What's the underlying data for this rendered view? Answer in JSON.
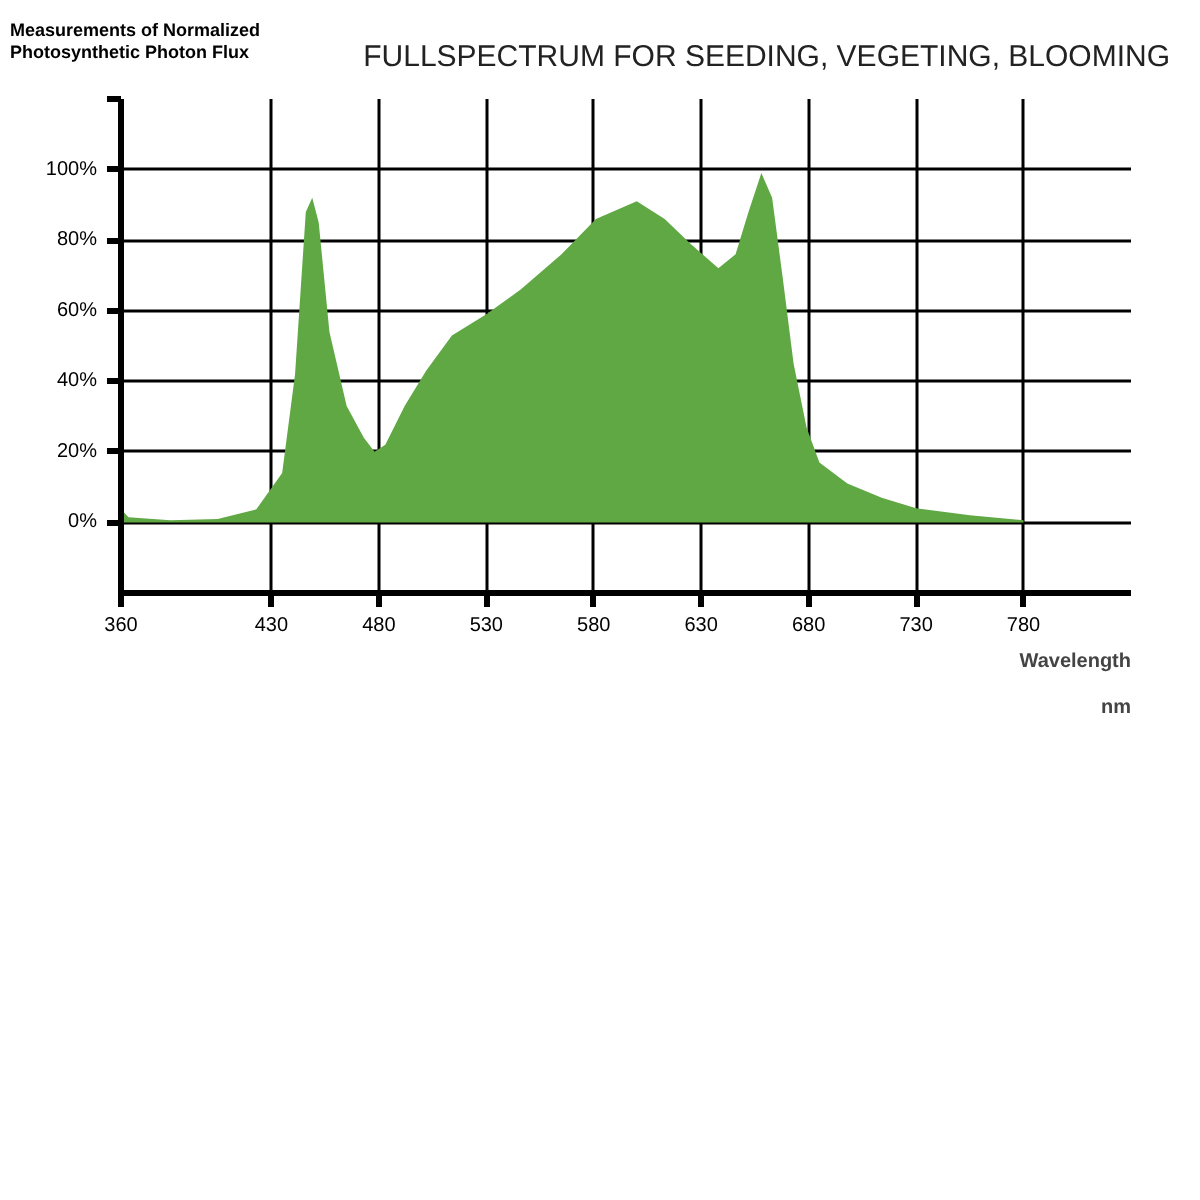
{
  "chart_data": {
    "type": "area",
    "title": "FULLSPECTRUM FOR SEEDING, VEGETING, BLOOMING",
    "ylabel": "Measurements of Normalized Photosynthetic Photon Flux",
    "xlabel": "Wavelength nm",
    "x": [
      360,
      363.5,
      383,
      405,
      423,
      435,
      441,
      446,
      449,
      452,
      457,
      465,
      473,
      478,
      483,
      492,
      502,
      514,
      530,
      546,
      565,
      581,
      600,
      613,
      625,
      638,
      646,
      652,
      658,
      663,
      668,
      673,
      679,
      685,
      698,
      714,
      730,
      755,
      780
    ],
    "series": [
      {
        "color": "#5fa843",
        "values": [
          3.7,
          1.5,
          0.6,
          1,
          3.7,
          14,
          42,
          88,
          92,
          85,
          54,
          33,
          24,
          20,
          22,
          33,
          43,
          53,
          59,
          66,
          76,
          86,
          91,
          86,
          79,
          72,
          76,
          88,
          99,
          92,
          69,
          45,
          27,
          17,
          11,
          7,
          4,
          2,
          0.6
        ]
      }
    ],
    "xlim": [
      360,
      830
    ],
    "xticks": [
      360,
      430,
      480,
      530,
      580,
      630,
      680,
      730,
      780
    ],
    "ylim": [
      -20,
      120
    ],
    "yticks": [
      {
        "value": 0,
        "label": "0%"
      },
      {
        "value": 20,
        "label": "20%"
      },
      {
        "value": 40,
        "label": "40%"
      },
      {
        "value": 60,
        "label": "60%"
      },
      {
        "value": 80,
        "label": "80%"
      },
      {
        "value": 100,
        "label": "100%"
      },
      {
        "value": 120,
        "label": null
      }
    ],
    "grid": true
  }
}
